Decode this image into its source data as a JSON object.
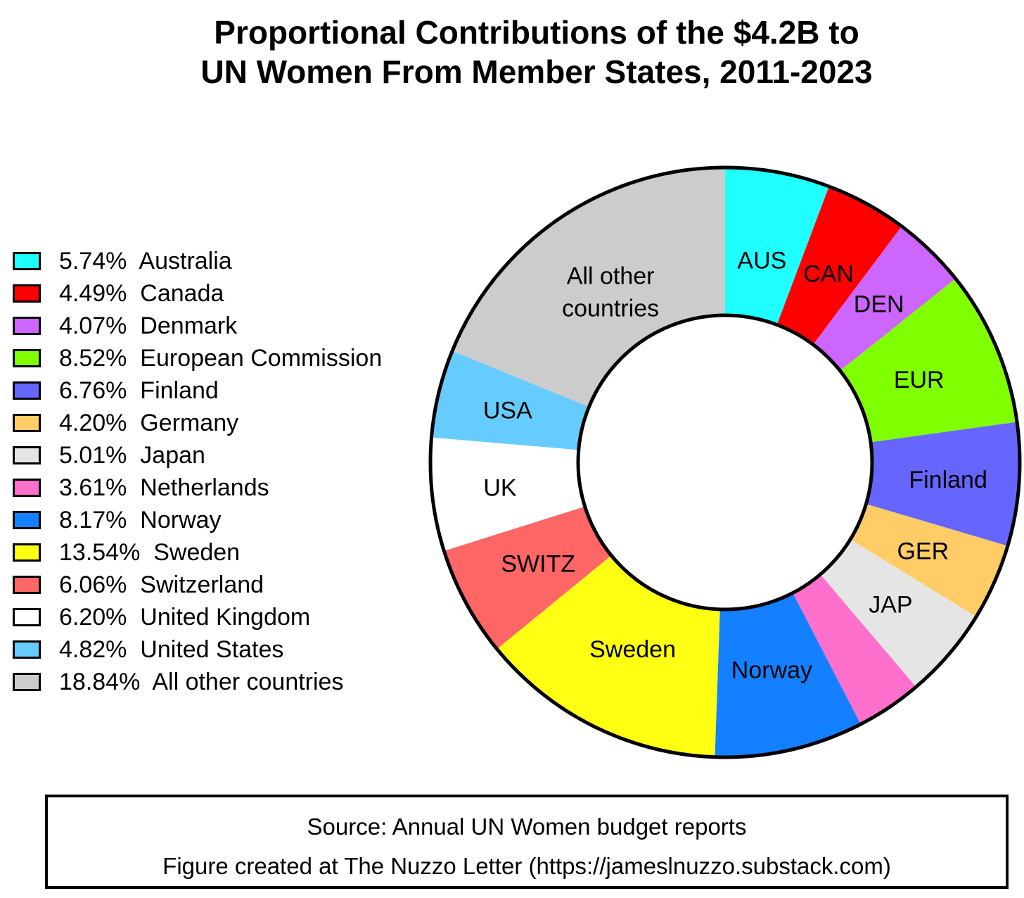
{
  "chart_data": {
    "type": "pie",
    "style": "donut",
    "title_lines": [
      "Proportional Contributions of the $4.2B to",
      "UN Women From Member States, 2011-2023"
    ],
    "unit": "%",
    "legend_position": "left",
    "slices": [
      {
        "name": "Australia",
        "short": "AUS",
        "value": 5.74,
        "value_label": "5.74%",
        "color": "#20ffff"
      },
      {
        "name": "Canada",
        "short": "CAN",
        "value": 4.49,
        "value_label": "4.49%",
        "color": "#ff0000"
      },
      {
        "name": "Denmark",
        "short": "DEN",
        "value": 4.07,
        "value_label": "4.07%",
        "color": "#cc66ff"
      },
      {
        "name": "European Commission",
        "short": "EUR",
        "value": 8.52,
        "value_label": "8.52%",
        "color": "#80ff00"
      },
      {
        "name": "Finland",
        "short": "Finland",
        "value": 6.76,
        "value_label": "6.76%",
        "color": "#6666ff"
      },
      {
        "name": "Germany",
        "short": "GER",
        "value": 4.2,
        "value_label": "4.20%",
        "color": "#ffcc66"
      },
      {
        "name": "Japan",
        "short": "JAP",
        "value": 5.01,
        "value_label": "5.01%",
        "color": "#e5e5e5"
      },
      {
        "name": "Netherlands",
        "short": "",
        "value": 3.61,
        "value_label": "3.61%",
        "color": "#ff70cc"
      },
      {
        "name": "Norway",
        "short": "Norway",
        "value": 8.17,
        "value_label": "8.17%",
        "color": "#1480ff"
      },
      {
        "name": "Sweden",
        "short": "Sweden",
        "value": 13.54,
        "value_label": "13.54%",
        "color": "#ffff14"
      },
      {
        "name": "Switzerland",
        "short": "SWITZ",
        "value": 6.06,
        "value_label": "6.06%",
        "color": "#ff6666"
      },
      {
        "name": "United Kingdom",
        "short": "UK",
        "value": 6.2,
        "value_label": "6.20%",
        "color": "#ffffff"
      },
      {
        "name": "United States",
        "short": "USA",
        "value": 4.82,
        "value_label": "4.82%",
        "color": "#66ccff"
      },
      {
        "name": "All other countries",
        "short": "All other\ncountries",
        "value": 18.84,
        "value_label": "18.84%",
        "color": "#cccccc"
      }
    ]
  },
  "source": {
    "line1": "Source: Annual UN Women budget reports",
    "line2": "Figure created at The Nuzzo Letter (https://jameslnuzzo.substack.com)"
  }
}
